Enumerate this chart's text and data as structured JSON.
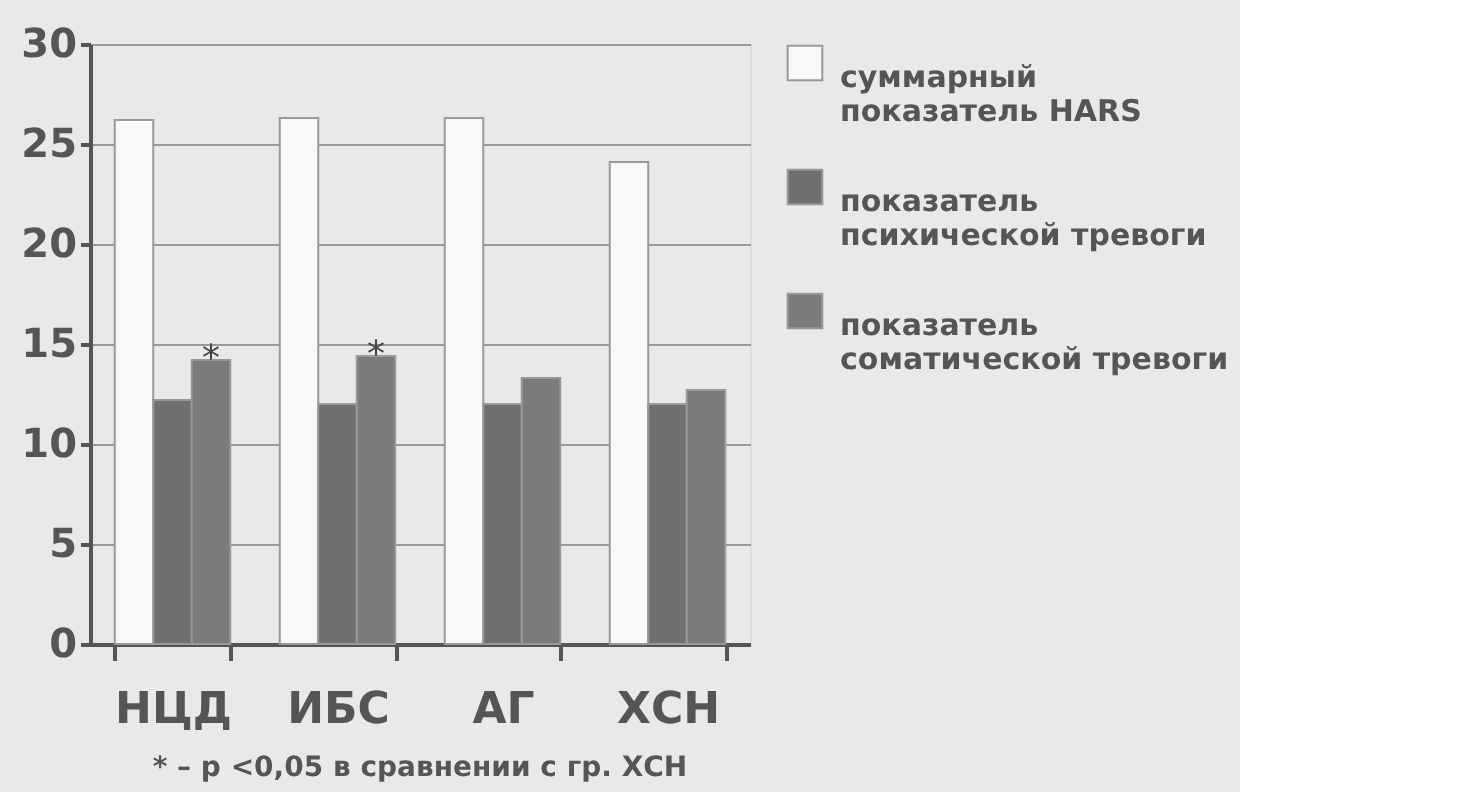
{
  "chart_data": {
    "type": "bar",
    "categories": [
      "НЦД",
      "ИБС",
      "АГ",
      "ХСН"
    ],
    "series": [
      {
        "name": "суммарный показатель HARS",
        "color": "#f8f8f8",
        "values": [
          26.2,
          26.3,
          26.3,
          24.1
        ]
      },
      {
        "name": "показатель психической тревоги",
        "color": "#6f6f6f",
        "values": [
          12.2,
          12.0,
          12.0,
          12.0
        ]
      },
      {
        "name": "показатель соматической тревоги",
        "color": "#7b7b7b",
        "values": [
          14.2,
          14.4,
          13.3,
          12.7
        ],
        "value_labels": [
          "*",
          "*",
          null,
          null
        ]
      }
    ],
    "ylim": [
      0,
      30
    ],
    "yticks": [
      0,
      5,
      10,
      15,
      20,
      25,
      30
    ],
    "grid": "y",
    "legend": "right",
    "annotations": [
      "* – p <0,05 в сравнении с гр. ХСН"
    ]
  }
}
